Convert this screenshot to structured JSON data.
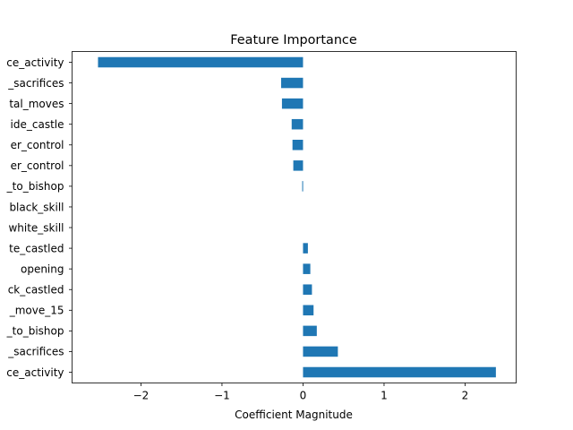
{
  "chart_data": {
    "type": "bar",
    "orientation": "horizontal",
    "title": "Feature Importance",
    "xlabel": "Coefficient Magnitude",
    "ylabel": "",
    "xlim": [
      -2.85,
      2.63
    ],
    "xticks": [
      -2,
      -1,
      0,
      1,
      2
    ],
    "xtick_labels": [
      "−2",
      "−1",
      "0",
      "1",
      "2"
    ],
    "bar_color": "#1f77b4",
    "grid": false,
    "categories_top_to_bottom": [
      "ce_activity",
      "_sacrifices",
      "tal_moves",
      "ide_castle",
      "er_control",
      "er_control",
      "_to_bishop",
      "black_skill",
      "white_skill",
      "te_castled",
      "opening",
      "ck_castled",
      "_move_15",
      "_to_bishop",
      "_sacrifices",
      "ce_activity"
    ],
    "values_top_to_bottom": [
      -2.53,
      -0.27,
      -0.26,
      -0.14,
      -0.13,
      -0.12,
      -0.01,
      0.0,
      0.0,
      0.06,
      0.09,
      0.11,
      0.13,
      0.17,
      0.43,
      2.38
    ]
  }
}
